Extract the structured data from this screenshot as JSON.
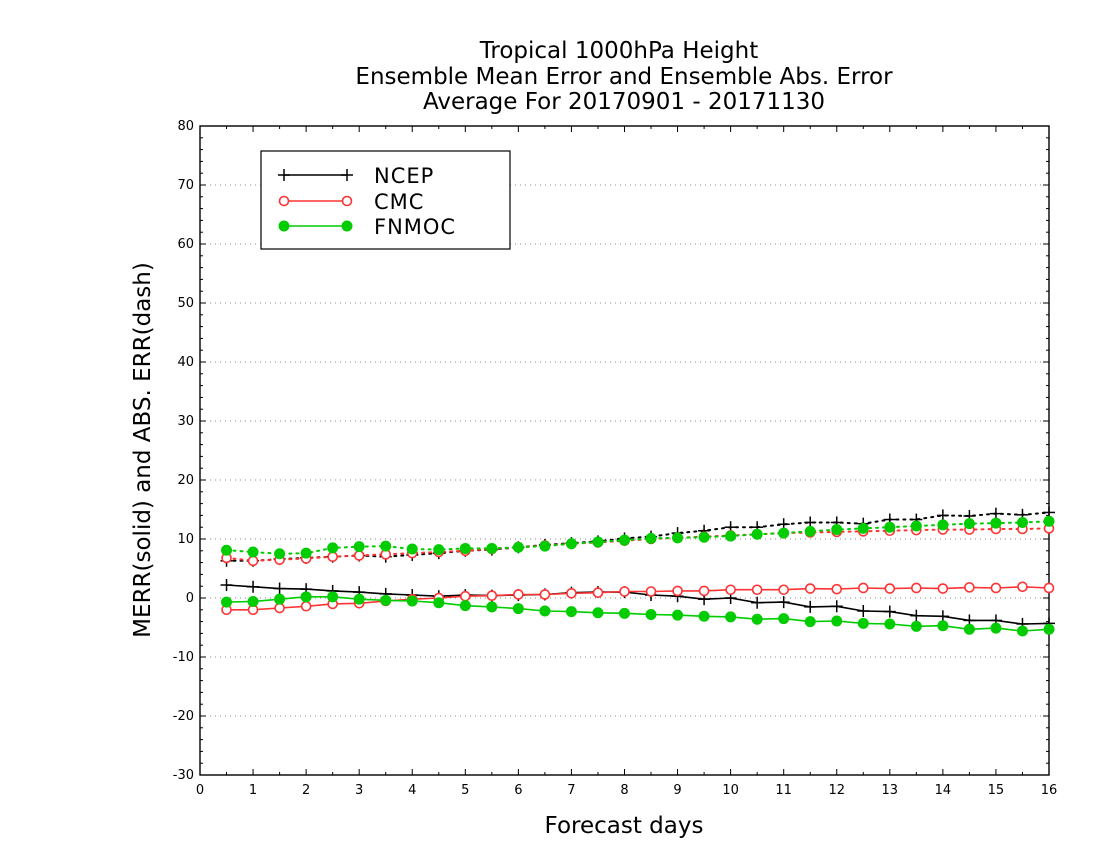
{
  "chart_data": {
    "type": "line",
    "title": [
      "Tropical 1000hPa Height",
      "Ensemble Mean Error and Ensemble Abs. Error",
      "Average For 20170901 - 20171130"
    ],
    "xlabel": "Forecast days",
    "ylabel": "MERR(solid) and ABS. ERR(dash)",
    "xlim": [
      0,
      16
    ],
    "ylim": [
      -30,
      80
    ],
    "xticks": [
      0,
      1,
      2,
      3,
      4,
      5,
      6,
      7,
      8,
      9,
      10,
      11,
      12,
      13,
      14,
      15,
      16
    ],
    "yticks": [
      -30,
      -20,
      -10,
      0,
      10,
      20,
      30,
      40,
      50,
      60,
      70,
      80
    ],
    "grid": "horizontal dotted",
    "legend_position": "top-left",
    "x": [
      0.5,
      1,
      1.5,
      2,
      2.5,
      3,
      3.5,
      4,
      4.5,
      5,
      5.5,
      6,
      6.5,
      7,
      7.5,
      8,
      8.5,
      9,
      9.5,
      10,
      10.5,
      11,
      11.5,
      12,
      12.5,
      13,
      13.5,
      14,
      14.5,
      15,
      15.5,
      16
    ],
    "series": [
      {
        "name": "NCEP",
        "color": "#000000",
        "marker": "plus",
        "mean_error": [
          2.2,
          1.9,
          1.6,
          1.5,
          1.2,
          1.0,
          0.7,
          0.5,
          0.3,
          0.5,
          0.4,
          0.5,
          0.6,
          0.9,
          1.0,
          1.0,
          0.5,
          0.3,
          -0.2,
          0.0,
          -0.8,
          -0.7,
          -1.5,
          -1.4,
          -2.2,
          -2.3,
          -3.0,
          -3.1,
          -3.8,
          -3.8,
          -4.4,
          -4.3
        ],
        "abs_error": [
          6.3,
          6.3,
          6.6,
          6.8,
          7.0,
          7.2,
          7.0,
          7.3,
          7.6,
          8.0,
          8.2,
          8.6,
          9.0,
          9.3,
          9.6,
          10.1,
          10.4,
          11.0,
          11.4,
          12.0,
          12.0,
          12.5,
          12.8,
          12.8,
          12.6,
          13.3,
          13.3,
          14.0,
          13.9,
          14.3,
          14.1,
          14.5
        ]
      },
      {
        "name": "CMC",
        "color": "#ff3333",
        "marker": "open-circle",
        "mean_error": [
          -2.0,
          -2.0,
          -1.7,
          -1.4,
          -1.0,
          -0.9,
          -0.5,
          -0.2,
          0.0,
          0.3,
          0.4,
          0.6,
          0.6,
          0.8,
          0.9,
          1.1,
          1.1,
          1.2,
          1.2,
          1.4,
          1.4,
          1.4,
          1.6,
          1.5,
          1.7,
          1.6,
          1.7,
          1.6,
          1.8,
          1.7,
          1.9,
          1.7
        ],
        "abs_error": [
          6.8,
          6.3,
          6.5,
          6.7,
          7.0,
          7.2,
          7.4,
          7.6,
          7.8,
          8.0,
          8.3,
          8.6,
          8.9,
          9.2,
          9.4,
          9.7,
          10.0,
          10.2,
          10.4,
          10.6,
          10.8,
          11.0,
          11.1,
          11.2,
          11.3,
          11.4,
          11.5,
          11.6,
          11.6,
          11.7,
          11.7,
          11.8
        ]
      },
      {
        "name": "FNMOC",
        "color": "#00cc00",
        "marker": "filled-circle",
        "mean_error": [
          -0.7,
          -0.6,
          -0.2,
          0.2,
          0.2,
          -0.2,
          -0.4,
          -0.5,
          -0.8,
          -1.3,
          -1.5,
          -1.8,
          -2.2,
          -2.3,
          -2.5,
          -2.6,
          -2.8,
          -2.9,
          -3.1,
          -3.2,
          -3.6,
          -3.5,
          -4.0,
          -3.9,
          -4.3,
          -4.4,
          -4.8,
          -4.7,
          -5.3,
          -5.1,
          -5.6,
          -5.3
        ],
        "abs_error": [
          8.1,
          7.8,
          7.5,
          7.6,
          8.5,
          8.7,
          8.8,
          8.3,
          8.2,
          8.4,
          8.4,
          8.6,
          8.8,
          9.2,
          9.5,
          9.8,
          10.1,
          10.2,
          10.3,
          10.5,
          10.8,
          11.0,
          11.3,
          11.6,
          11.8,
          12.0,
          12.2,
          12.4,
          12.6,
          12.7,
          12.8,
          13.0
        ]
      }
    ]
  }
}
